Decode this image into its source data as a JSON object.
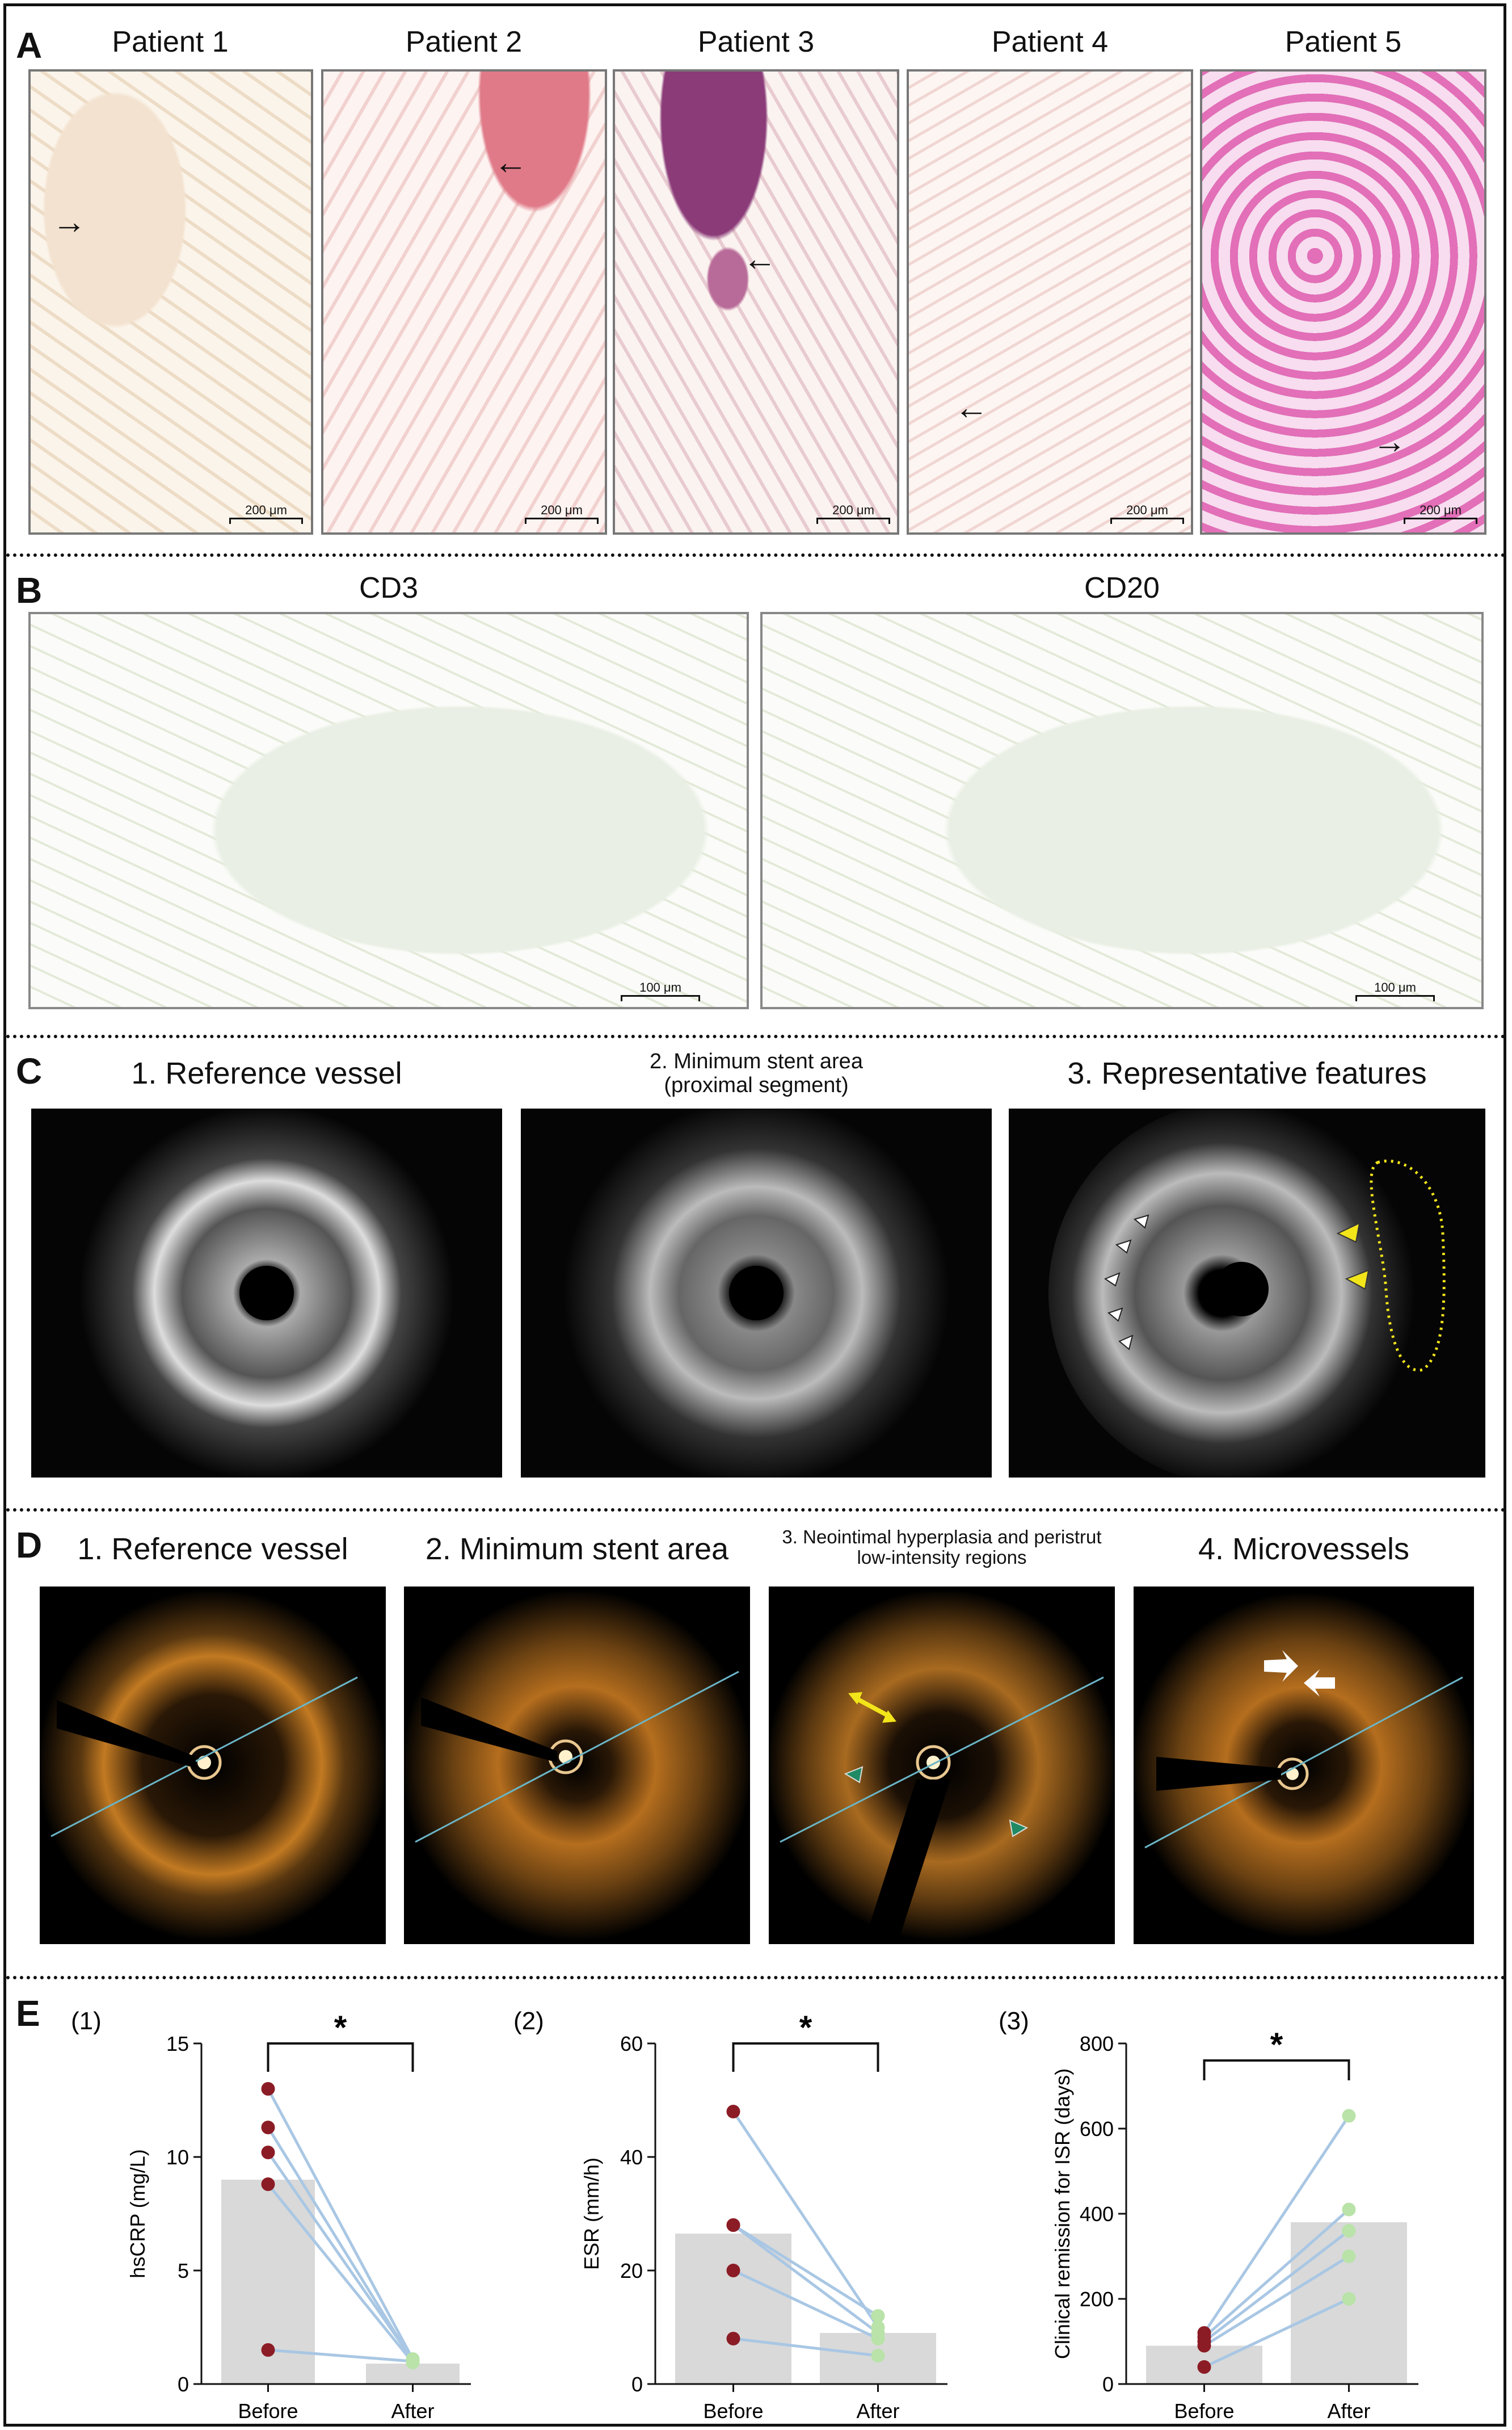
{
  "panels": {
    "A": {
      "letter": "A",
      "images": [
        {
          "title": "Patient 1",
          "scale": "200 μm"
        },
        {
          "title": "Patient 2",
          "scale": "200 μm"
        },
        {
          "title": "Patient 3",
          "scale": "200 μm"
        },
        {
          "title": "Patient 4",
          "scale": "200 μm"
        },
        {
          "title": "Patient 5",
          "scale": "200 μm"
        }
      ]
    },
    "B": {
      "letter": "B",
      "images": [
        {
          "title": "CD3",
          "scale": "100 μm"
        },
        {
          "title": "CD20",
          "scale": "100 μm"
        }
      ]
    },
    "C": {
      "letter": "C",
      "images": [
        {
          "title": "1. Reference vessel"
        },
        {
          "title_line1": "2. Minimum stent area",
          "title_line2": "(proximal segment)"
        },
        {
          "title": "3. Representative features"
        }
      ]
    },
    "D": {
      "letter": "D",
      "images": [
        {
          "title": "1. Reference vessel"
        },
        {
          "title": "2. Minimum stent area"
        },
        {
          "title_line1": "3. Neointimal hyperplasia and peristrut",
          "title_line2": "low-intensity regions"
        },
        {
          "title": "4. Microvessels"
        }
      ]
    },
    "E": {
      "letter": "E",
      "significance": "*",
      "charts": [
        {
          "label": "(1)"
        },
        {
          "label": "(2)"
        },
        {
          "label": "(3)"
        }
      ]
    }
  },
  "colors": {
    "bar": "#d9d9d9",
    "before_point": "#8b1c25",
    "after_point": "#b9e3a8",
    "line": "#a9c7e4",
    "arrow_yellow": "#f2e51a",
    "arrow_green": "#1f8a63",
    "dotted_outline": "#f2e51a"
  },
  "chart_data": [
    {
      "type": "bar",
      "categories": [
        "Before",
        "After"
      ],
      "values": [
        9.0,
        0.9
      ],
      "ylabel": "hsCRP (mg/L)",
      "ylim": [
        0,
        15
      ],
      "yticks": [
        0,
        5,
        10,
        15
      ],
      "paired_points": [
        [
          13.0,
          1.1
        ],
        [
          11.3,
          1.0
        ],
        [
          10.2,
          1.05
        ],
        [
          8.8,
          0.95
        ],
        [
          1.5,
          1.0
        ]
      ],
      "significance": "*"
    },
    {
      "type": "bar",
      "categories": [
        "Before",
        "After"
      ],
      "values": [
        26.5,
        9.0
      ],
      "ylabel": "ESR (mm/h)",
      "ylim": [
        0,
        60
      ],
      "yticks": [
        0,
        20,
        40,
        60
      ],
      "paired_points": [
        [
          48,
          10
        ],
        [
          28,
          12
        ],
        [
          28,
          9
        ],
        [
          20,
          8
        ],
        [
          8,
          5
        ]
      ],
      "significance": "*"
    },
    {
      "type": "bar",
      "categories": [
        "Before",
        "After"
      ],
      "values": [
        90,
        380
      ],
      "ylabel": "Clinical remission for ISR (days)",
      "ylim": [
        0,
        800
      ],
      "yticks": [
        0,
        200,
        400,
        600,
        800
      ],
      "paired_points": [
        [
          120,
          630
        ],
        [
          110,
          410
        ],
        [
          100,
          360
        ],
        [
          90,
          300
        ],
        [
          40,
          200
        ]
      ],
      "significance": "*"
    }
  ]
}
